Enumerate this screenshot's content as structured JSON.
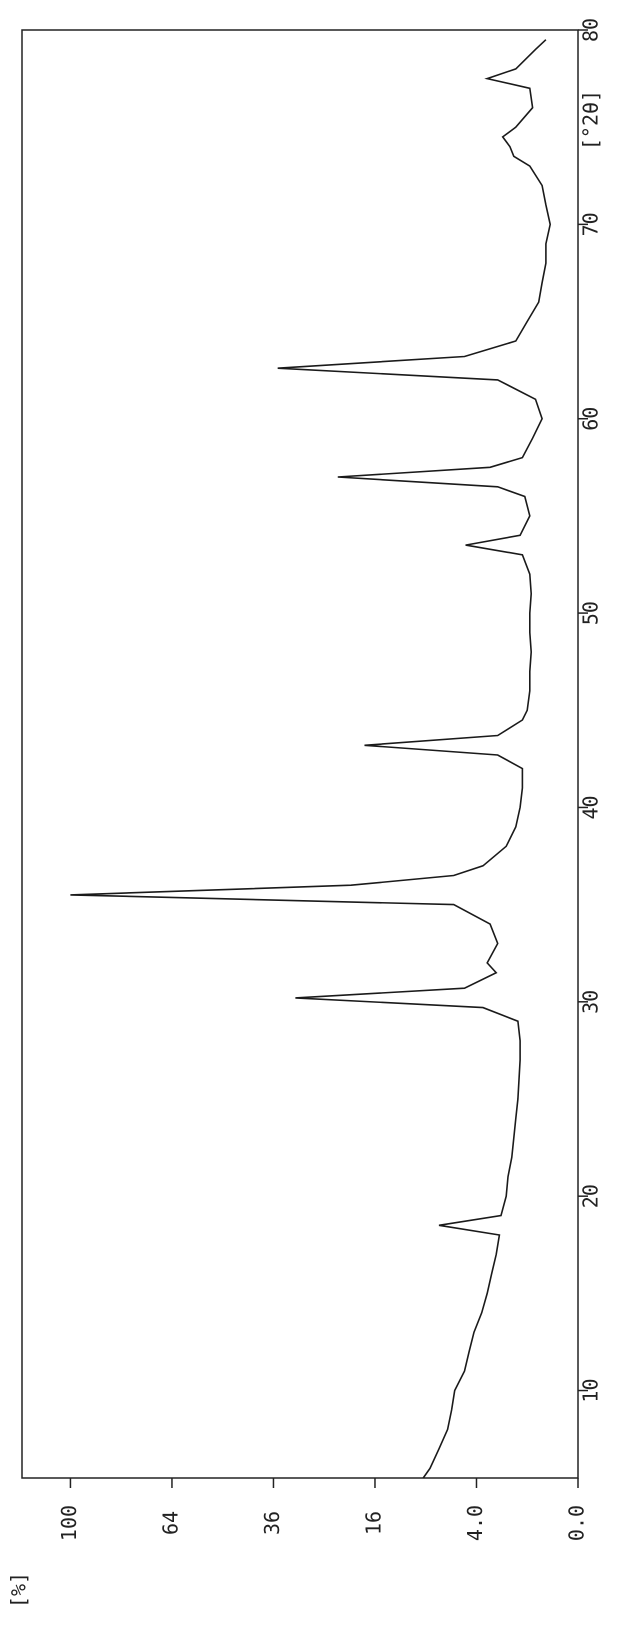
{
  "chart_data": {
    "type": "line",
    "scale": "sqrt",
    "xlabel": "[°2θ]",
    "ylabel": "[%]",
    "xlim": [
      5.5,
      80
    ],
    "xticks": [
      10,
      20,
      30,
      40,
      50,
      60,
      70,
      80
    ],
    "ylim": [
      0,
      120
    ],
    "yticks": [
      {
        "value": 0,
        "label": "0.0"
      },
      {
        "value": 4,
        "label": "4.0"
      },
      16,
      36,
      64,
      100
    ],
    "x": [
      5.5,
      6,
      7,
      8,
      9,
      10,
      11,
      12,
      13,
      14,
      15,
      16,
      17,
      18,
      18.5,
      19,
      20,
      21,
      22,
      23,
      24,
      25,
      26,
      27,
      28,
      29,
      29.7,
      30.2,
      30.7,
      31.5,
      32,
      33,
      34,
      35,
      35.5,
      36,
      36.5,
      37,
      38,
      39,
      40,
      41,
      42,
      42.7,
      43.2,
      43.7,
      44.5,
      45,
      46,
      47,
      48,
      49,
      50,
      51,
      52,
      53,
      53.5,
      54,
      55,
      56,
      56.5,
      57,
      57.5,
      58,
      59,
      60,
      61,
      62,
      62.6,
      63.2,
      64,
      65,
      66,
      67,
      68,
      69,
      70,
      71,
      72,
      73,
      73.5,
      74,
      74.5,
      75,
      76,
      77,
      77.5,
      78,
      79,
      79.5
    ],
    "series": [
      {
        "color": "#1a1a1a",
        "values": [
          9.3,
          8.5,
          7.5,
          6.6,
          6.2,
          5.9,
          5.0,
          4.6,
          4.2,
          3.6,
          3.2,
          2.9,
          2.6,
          2.4,
          7.5,
          2.3,
          2.0,
          1.9,
          1.7,
          1.6,
          1.5,
          1.4,
          1.35,
          1.3,
          1.3,
          1.4,
          3.5,
          31,
          5,
          2.6,
          3.2,
          2.5,
          3.0,
          6.0,
          100,
          20,
          6,
          3.5,
          2.0,
          1.5,
          1.3,
          1.2,
          1.2,
          2.5,
          17.7,
          2.5,
          1.2,
          1.0,
          0.9,
          0.9,
          0.85,
          0.9,
          0.9,
          0.85,
          0.9,
          1.2,
          4.9,
          1.3,
          0.9,
          1.1,
          2.5,
          22.4,
          3.0,
          1.2,
          0.8,
          0.5,
          0.7,
          2.5,
          35,
          5,
          1.5,
          1.0,
          0.6,
          0.5,
          0.4,
          0.4,
          0.3,
          0.4,
          0.5,
          0.9,
          1.6,
          1.8,
          2.2,
          1.5,
          0.8,
          0.9,
          3.2,
          1.5,
          0.7,
          0.4
        ]
      }
    ]
  }
}
